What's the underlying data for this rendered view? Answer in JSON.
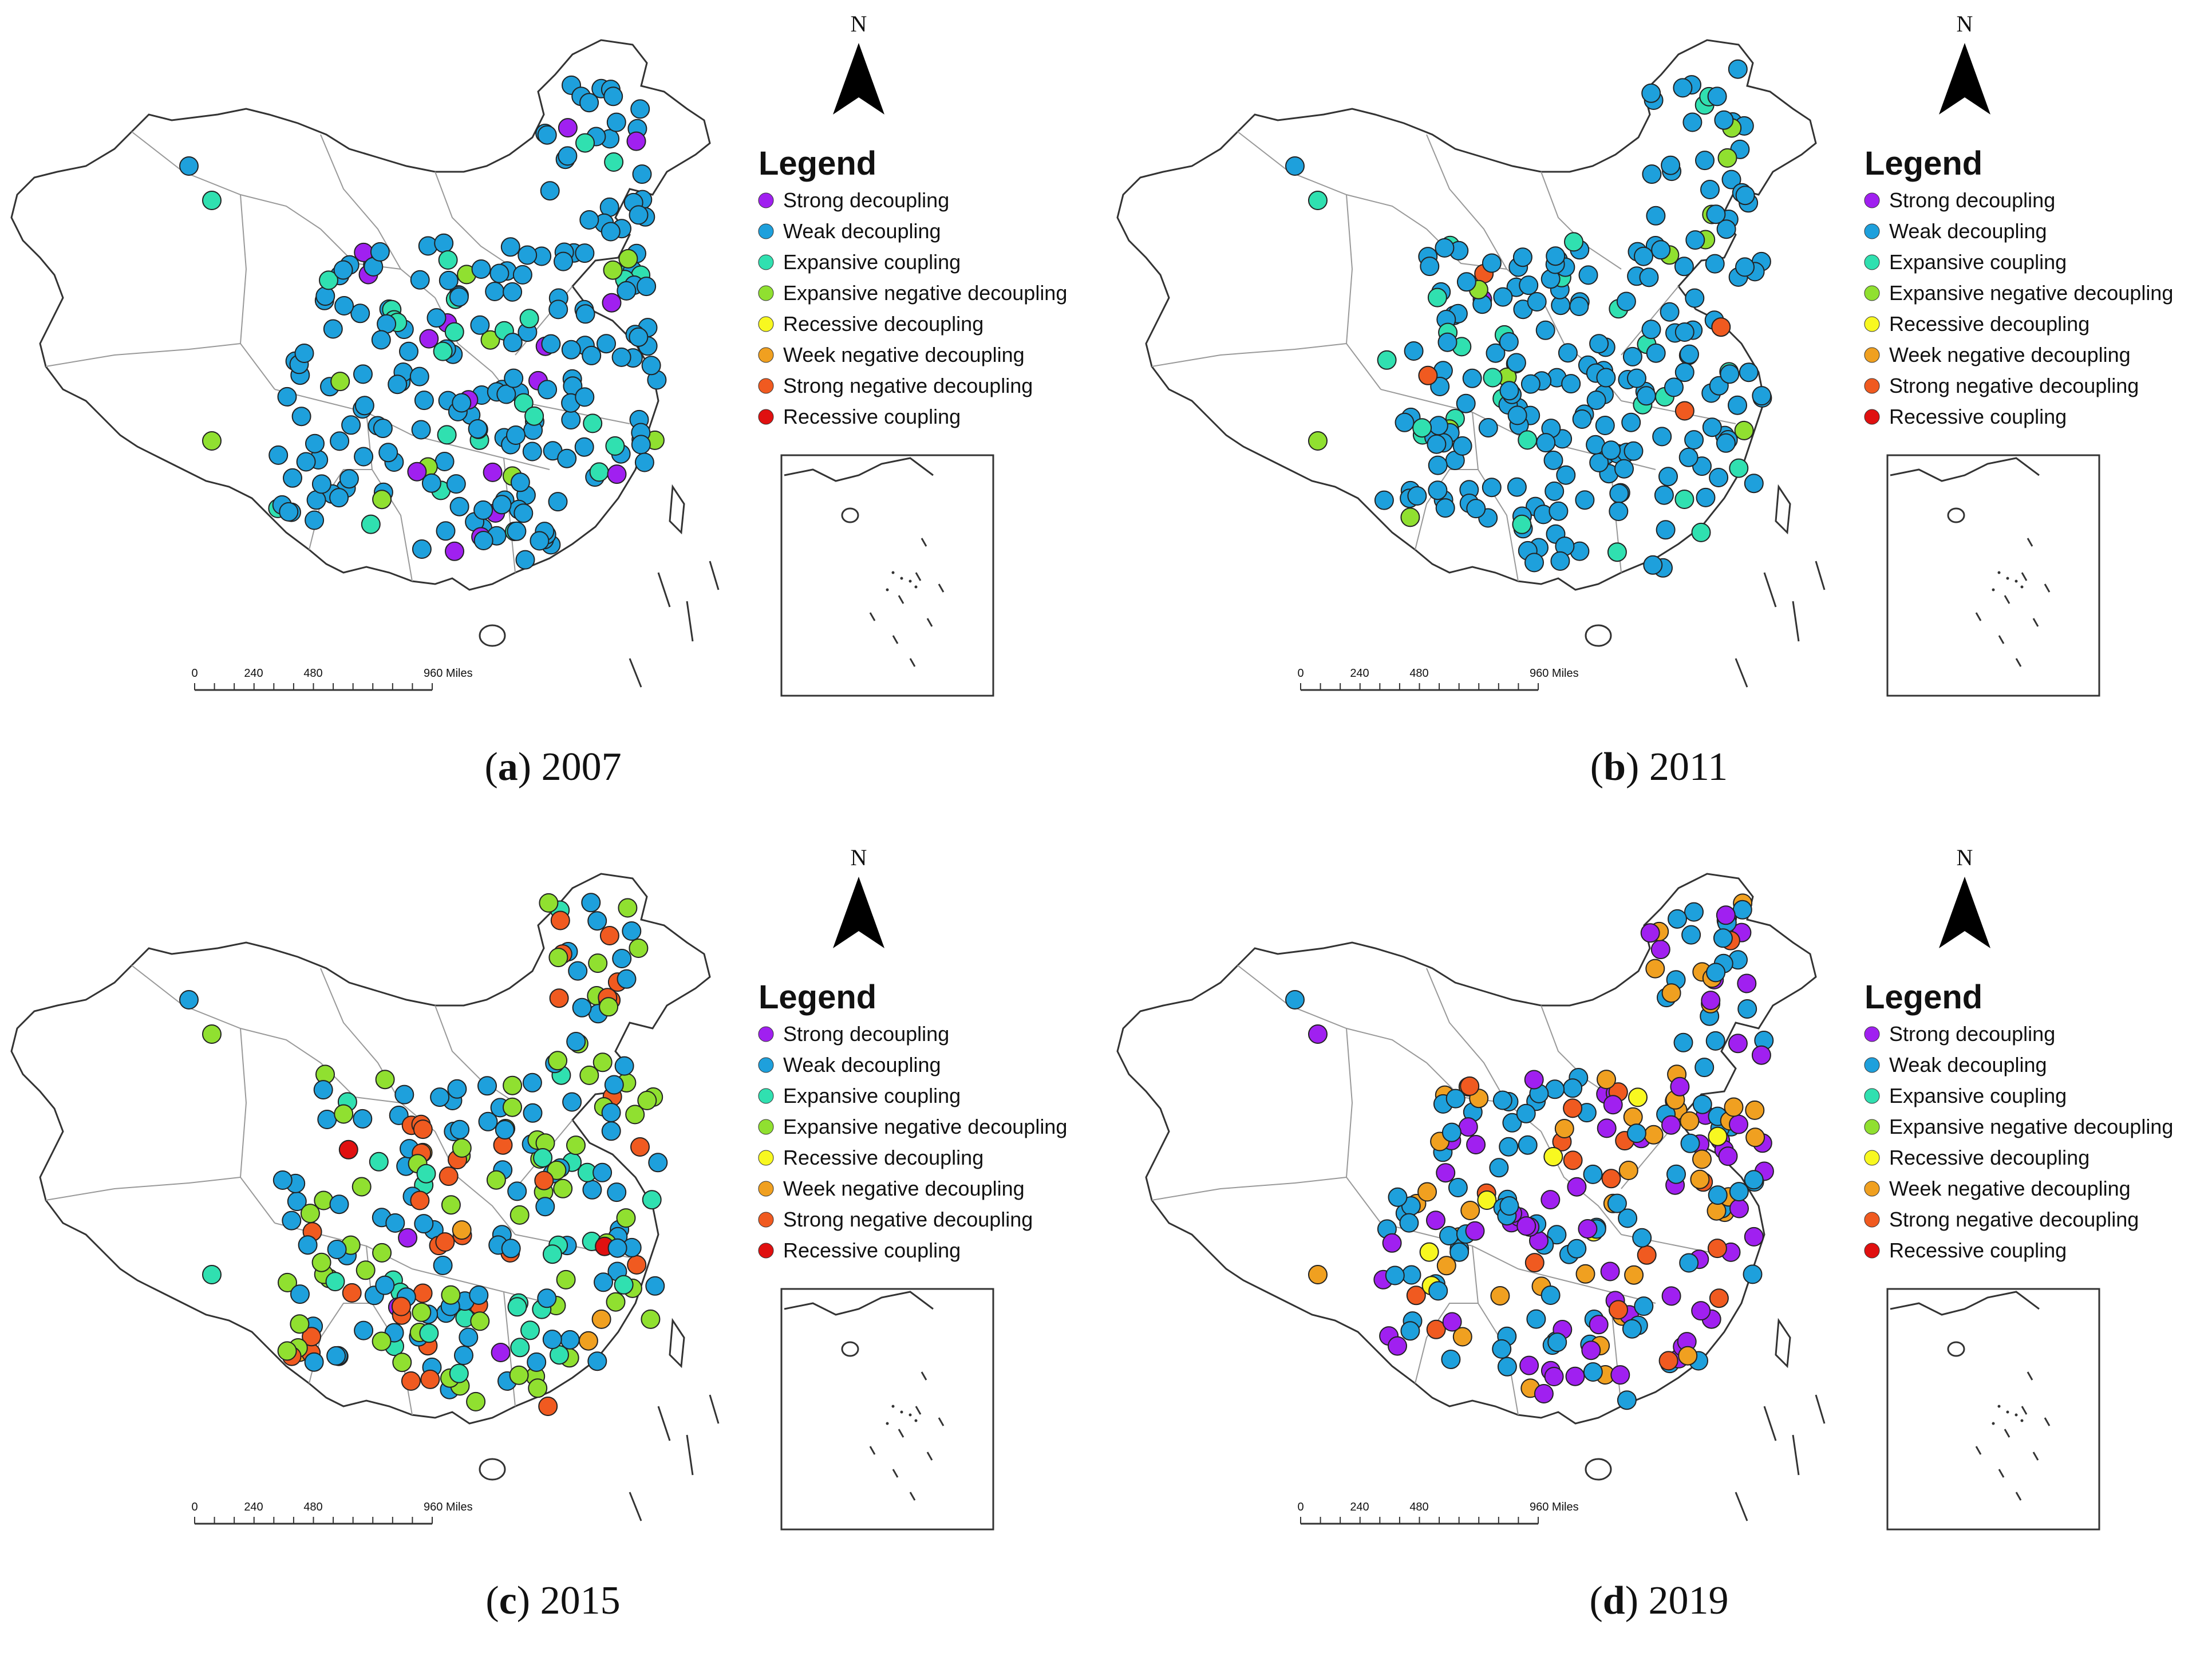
{
  "north_label": "N",
  "legend_title": "Legend",
  "scale": {
    "ticks": [
      "0",
      "240",
      "480",
      "960 Miles"
    ]
  },
  "categories": [
    {
      "key": "strong_decoupling",
      "label": "Strong decoupling",
      "color": "#a020f0"
    },
    {
      "key": "weak_decoupling",
      "label": "Weak decoupling",
      "color": "#1ea0dc"
    },
    {
      "key": "expansive_coupling",
      "label": "Expansive coupling",
      "color": "#30e0b0"
    },
    {
      "key": "expansive_negative_decoupling",
      "label": "Expansive negative decoupling",
      "color": "#90e030"
    },
    {
      "key": "recessive_decoupling",
      "label": "Recessive decoupling",
      "color": "#f8f820"
    },
    {
      "key": "week_negative_decoupling",
      "label": "Week negative decoupling",
      "color": "#f0a020"
    },
    {
      "key": "strong_negative_decoupling",
      "label": "Strong negative decoupling",
      "color": "#f05a20"
    },
    {
      "key": "recessive_coupling",
      "label": "Recessive coupling",
      "color": "#e01010"
    }
  ],
  "panels": [
    {
      "letter": "a",
      "year": "2007",
      "mix": {
        "weak_decoupling": 0.82,
        "expansive_coupling": 0.08,
        "expansive_negative_decoupling": 0.05,
        "strong_decoupling": 0.04,
        "strong_negative_decoupling": 0.01
      }
    },
    {
      "letter": "b",
      "year": "2011",
      "mix": {
        "weak_decoupling": 0.8,
        "expansive_coupling": 0.12,
        "expansive_negative_decoupling": 0.04,
        "strong_negative_decoupling": 0.03,
        "strong_decoupling": 0.01
      }
    },
    {
      "letter": "c",
      "year": "2015",
      "mix": {
        "weak_decoupling": 0.38,
        "expansive_negative_decoupling": 0.27,
        "expansive_coupling": 0.13,
        "strong_negative_decoupling": 0.16,
        "strong_decoupling": 0.03,
        "week_negative_decoupling": 0.02,
        "recessive_coupling": 0.01
      }
    },
    {
      "letter": "d",
      "year": "2019",
      "mix": {
        "weak_decoupling": 0.42,
        "strong_decoupling": 0.3,
        "week_negative_decoupling": 0.16,
        "strong_negative_decoupling": 0.08,
        "recessive_decoupling": 0.04
      }
    }
  ]
}
